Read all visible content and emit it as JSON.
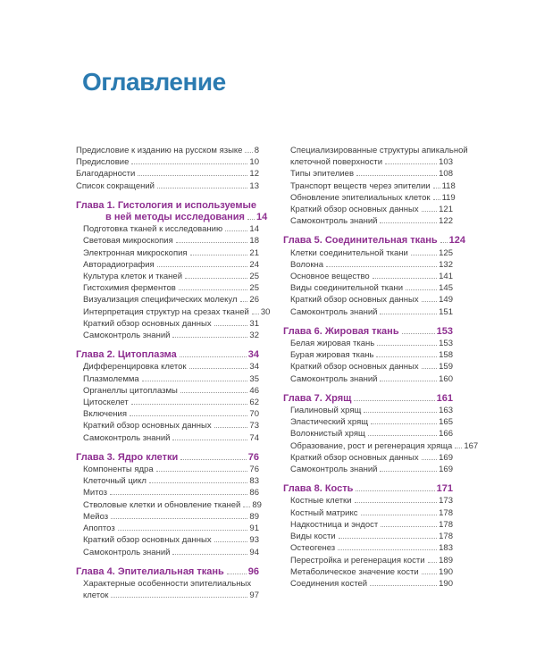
{
  "page": {
    "title": "Оглавление"
  },
  "colors": {
    "title_blue": "#2b7bb1",
    "chapter_purple": "#8e2f90",
    "body_text": "#3d3d3d",
    "dot_leader": "#9a9a9a"
  },
  "toc": {
    "left_column": [
      {
        "type": "front",
        "lines": [
          "Предисловие к изданию на русском языке"
        ],
        "page": "8"
      },
      {
        "type": "front",
        "lines": [
          "Предисловие"
        ],
        "page": "10"
      },
      {
        "type": "front",
        "lines": [
          "Благодарности"
        ],
        "page": "12"
      },
      {
        "type": "front",
        "lines": [
          "Список сокращений"
        ],
        "page": "13"
      },
      {
        "type": "chapter",
        "lines": [
          "Глава 1. Гистология и используемые",
          "в ней методы исследования"
        ],
        "page": "14"
      },
      {
        "type": "sub",
        "lines": [
          "Подготовка тканей к исследованию"
        ],
        "page": "14"
      },
      {
        "type": "sub",
        "lines": [
          "Световая микроскопия"
        ],
        "page": "18"
      },
      {
        "type": "sub",
        "lines": [
          "Электронная микроскопия"
        ],
        "page": "21"
      },
      {
        "type": "sub",
        "lines": [
          "Авторадиография"
        ],
        "page": "24"
      },
      {
        "type": "sub",
        "lines": [
          "Культура клеток и тканей"
        ],
        "page": "25"
      },
      {
        "type": "sub",
        "lines": [
          "Гистохимия ферментов"
        ],
        "page": "25"
      },
      {
        "type": "sub",
        "lines": [
          "Визуализация специфических молекул"
        ],
        "page": "26"
      },
      {
        "type": "sub",
        "lines": [
          "Интерпретация структур на срезах тканей"
        ],
        "page": "30"
      },
      {
        "type": "sub",
        "lines": [
          "Краткий обзор основных данных"
        ],
        "page": "31"
      },
      {
        "type": "sub",
        "lines": [
          "Самоконтроль знаний"
        ],
        "page": "32"
      },
      {
        "type": "chapter",
        "lines": [
          "Глава 2. Цитоплазма"
        ],
        "page": "34"
      },
      {
        "type": "sub",
        "lines": [
          "Дифференцировка клеток"
        ],
        "page": "34"
      },
      {
        "type": "sub",
        "lines": [
          "Плазмолемма"
        ],
        "page": "35"
      },
      {
        "type": "sub",
        "lines": [
          "Органеллы цитоплазмы"
        ],
        "page": "46"
      },
      {
        "type": "sub",
        "lines": [
          "Цитоскелет"
        ],
        "page": "62"
      },
      {
        "type": "sub",
        "lines": [
          "Включения"
        ],
        "page": "70"
      },
      {
        "type": "sub",
        "lines": [
          "Краткий обзор основных данных"
        ],
        "page": "73"
      },
      {
        "type": "sub",
        "lines": [
          "Самоконтроль знаний"
        ],
        "page": "74"
      },
      {
        "type": "chapter",
        "lines": [
          "Глава 3. Ядро клетки"
        ],
        "page": "76"
      },
      {
        "type": "sub",
        "lines": [
          "Компоненты ядра"
        ],
        "page": "76"
      },
      {
        "type": "sub",
        "lines": [
          "Клеточный цикл"
        ],
        "page": "83"
      },
      {
        "type": "sub",
        "lines": [
          "Митоз"
        ],
        "page": "86"
      },
      {
        "type": "sub",
        "lines": [
          "Стволовые клетки и обновление тканей"
        ],
        "page": "89"
      },
      {
        "type": "sub",
        "lines": [
          "Мейоз"
        ],
        "page": "89"
      },
      {
        "type": "sub",
        "lines": [
          "Апоптоз"
        ],
        "page": "91"
      },
      {
        "type": "sub",
        "lines": [
          "Краткий обзор основных данных"
        ],
        "page": "93"
      },
      {
        "type": "sub",
        "lines": [
          "Самоконтроль знаний"
        ],
        "page": "94"
      },
      {
        "type": "chapter",
        "lines": [
          "Глава 4. Эпителиальная ткань"
        ],
        "page": "96"
      },
      {
        "type": "sub",
        "lines": [
          "Характерные особенности эпителиальных",
          "клеток"
        ],
        "page": "97"
      }
    ],
    "right_column": [
      {
        "type": "sub",
        "lines": [
          "Специализированные структуры апикальной",
          "клеточной поверхности"
        ],
        "page": "103"
      },
      {
        "type": "sub",
        "lines": [
          "Типы эпителиев"
        ],
        "page": "108"
      },
      {
        "type": "sub",
        "lines": [
          "Транспорт веществ через эпителии"
        ],
        "page": "118"
      },
      {
        "type": "sub",
        "lines": [
          "Обновление эпителиальных клеток"
        ],
        "page": "119"
      },
      {
        "type": "sub",
        "lines": [
          "Краткий обзор основных данных"
        ],
        "page": "121"
      },
      {
        "type": "sub",
        "lines": [
          "Самоконтроль знаний"
        ],
        "page": "122"
      },
      {
        "type": "chapter",
        "lines": [
          "Глава 5. Соединительная ткань"
        ],
        "page": "124"
      },
      {
        "type": "sub",
        "lines": [
          "Клетки соединительной ткани"
        ],
        "page": "125"
      },
      {
        "type": "sub",
        "lines": [
          "Волокна"
        ],
        "page": "132"
      },
      {
        "type": "sub",
        "lines": [
          "Основное вещество"
        ],
        "page": "141"
      },
      {
        "type": "sub",
        "lines": [
          "Виды соединительной ткани"
        ],
        "page": "145"
      },
      {
        "type": "sub",
        "lines": [
          "Краткий обзор основных данных"
        ],
        "page": "149"
      },
      {
        "type": "sub",
        "lines": [
          "Самоконтроль знаний"
        ],
        "page": "151"
      },
      {
        "type": "chapter",
        "lines": [
          "Глава 6. Жировая ткань"
        ],
        "page": "153"
      },
      {
        "type": "sub",
        "lines": [
          "Белая жировая ткань"
        ],
        "page": "153"
      },
      {
        "type": "sub",
        "lines": [
          "Бурая жировая ткань"
        ],
        "page": "158"
      },
      {
        "type": "sub",
        "lines": [
          "Краткий обзор основных данных"
        ],
        "page": "159"
      },
      {
        "type": "sub",
        "lines": [
          "Самоконтроль знаний"
        ],
        "page": "160"
      },
      {
        "type": "chapter",
        "lines": [
          "Глава 7. Хрящ"
        ],
        "page": "161"
      },
      {
        "type": "sub",
        "lines": [
          "Гиалиновый хрящ"
        ],
        "page": "163"
      },
      {
        "type": "sub",
        "lines": [
          "Эластический хрящ"
        ],
        "page": "165"
      },
      {
        "type": "sub",
        "lines": [
          "Волокнистый хрящ"
        ],
        "page": "166"
      },
      {
        "type": "sub",
        "lines": [
          "Образование, рост и регенерация хряща"
        ],
        "page": "167"
      },
      {
        "type": "sub",
        "lines": [
          "Краткий обзор основных данных"
        ],
        "page": "169"
      },
      {
        "type": "sub",
        "lines": [
          "Самоконтроль знаний"
        ],
        "page": "169"
      },
      {
        "type": "chapter",
        "lines": [
          "Глава 8. Кость"
        ],
        "page": "171"
      },
      {
        "type": "sub",
        "lines": [
          "Костные клетки"
        ],
        "page": "173"
      },
      {
        "type": "sub",
        "lines": [
          "Костный матрикс"
        ],
        "page": "178"
      },
      {
        "type": "sub",
        "lines": [
          "Надкостница и эндост"
        ],
        "page": "178"
      },
      {
        "type": "sub",
        "lines": [
          "Виды кости"
        ],
        "page": "178"
      },
      {
        "type": "sub",
        "lines": [
          "Остеогенез"
        ],
        "page": "183"
      },
      {
        "type": "sub",
        "lines": [
          "Перестройка и регенерация кости"
        ],
        "page": "189"
      },
      {
        "type": "sub",
        "lines": [
          "Метаболическое значение кости"
        ],
        "page": "190"
      },
      {
        "type": "sub",
        "lines": [
          "Соединения костей"
        ],
        "page": "190"
      }
    ]
  }
}
